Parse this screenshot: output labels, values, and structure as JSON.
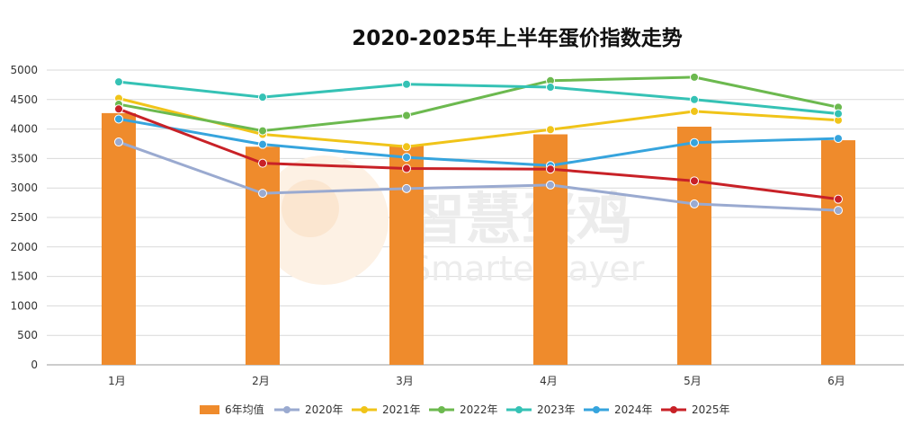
{
  "watermark": {
    "cn": "智慧蛋鸡",
    "en": "Smarter layer"
  },
  "chart_data": {
    "type": "bar",
    "title": "2020-2025年上半年蛋价指数走势",
    "categories": [
      "1月",
      "2月",
      "3月",
      "4月",
      "5月",
      "6月"
    ],
    "ylim": [
      0,
      5000
    ],
    "yticks": [
      0,
      500,
      1000,
      1500,
      2000,
      2500,
      3000,
      3500,
      4000,
      4500,
      5000
    ],
    "grid": true,
    "legend_position": "bottom",
    "bars": {
      "name": "6年均值",
      "color": "#ef8b2c",
      "values": [
        4270,
        3700,
        3730,
        3910,
        4040,
        3810
      ]
    },
    "series": [
      {
        "name": "2020年",
        "color": "#9aaad0",
        "values": [
          3780,
          2910,
          2990,
          3050,
          2730,
          2620
        ]
      },
      {
        "name": "2021年",
        "color": "#f0c419",
        "values": [
          4520,
          3910,
          3700,
          3990,
          4300,
          4150
        ]
      },
      {
        "name": "2022年",
        "color": "#6cb94f",
        "values": [
          4420,
          3970,
          4230,
          4820,
          4880,
          4370
        ]
      },
      {
        "name": "2023年",
        "color": "#35c2b5",
        "values": [
          4800,
          4540,
          4760,
          4710,
          4500,
          4260
        ]
      },
      {
        "name": "2024年",
        "color": "#36a4dd",
        "values": [
          4170,
          3740,
          3520,
          3380,
          3770,
          3840
        ]
      },
      {
        "name": "2025年",
        "color": "#c82127",
        "values": [
          4340,
          3420,
          3330,
          3320,
          3120,
          2810
        ]
      }
    ]
  }
}
